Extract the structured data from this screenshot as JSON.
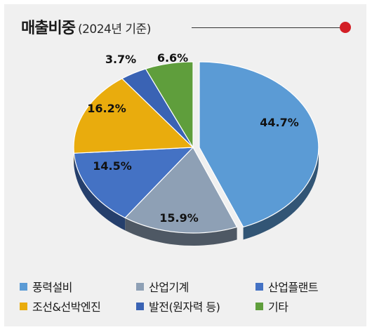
{
  "title": {
    "main": "매출비중",
    "sub": "(2024년 기준)"
  },
  "accent_color": "#d31f26",
  "chart_data": {
    "type": "pie",
    "title": "매출비중",
    "subtitle": "(2024년 기준)",
    "categories": [
      "풍력설비",
      "산업기계",
      "산업플랜트",
      "조선&선박엔진",
      "발전(원자력 등)",
      "기타"
    ],
    "values": [
      44.7,
      15.9,
      14.5,
      16.2,
      3.7,
      6.6
    ],
    "labels": [
      "44.7%",
      "15.9%",
      "14.5%",
      "16.2%",
      "3.7%",
      "6.6%"
    ],
    "colors": [
      "#5b9bd5",
      "#8ea0b5",
      "#4472c4",
      "#e9ac0d",
      "#3a63b4",
      "#5f9e3c"
    ],
    "legend_position": "bottom",
    "exploded_slice": "풍력설비"
  }
}
